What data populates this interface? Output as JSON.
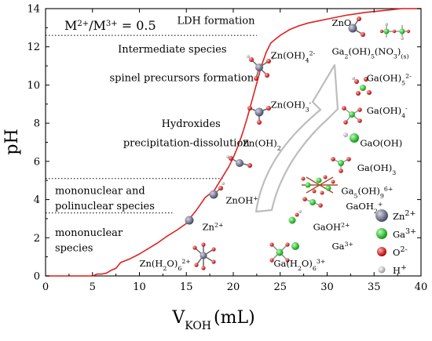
{
  "chart_data": {
    "type": "line",
    "xlabel": "V",
    "xlabel_sub": "KOH",
    "xlabel_unit": "(mL)",
    "ylabel": "pH",
    "xlim": [
      0,
      40
    ],
    "ylim": [
      0,
      14
    ],
    "x_ticks": [
      0,
      5,
      10,
      15,
      20,
      25,
      30,
      35,
      40
    ],
    "y_ticks": [
      0,
      2,
      4,
      6,
      8,
      10,
      12,
      14
    ],
    "grid": false,
    "ratio_label": {
      "base": "M",
      "sup1": "2+",
      "slash": "/M",
      "sup2": "3+",
      "value": " = 0.5"
    },
    "series": [
      {
        "color": "#e02020",
        "x": [
          0,
          5.0,
          5.5,
          6,
          6.5,
          7,
          7.5,
          8,
          9,
          10,
          11,
          12,
          13,
          14,
          15,
          15.5,
          16,
          16.5,
          17,
          18,
          18.5,
          19,
          19.5,
          20,
          20.5,
          21,
          21.5,
          22,
          22.5,
          23,
          23.5,
          24,
          25,
          26,
          27,
          28,
          29,
          30,
          31,
          32,
          33,
          34,
          35,
          36,
          37,
          38,
          40
        ],
        "y": [
          0,
          0.0,
          0.1,
          0.1,
          0.15,
          0.3,
          0.4,
          0.7,
          0.9,
          1.15,
          1.45,
          1.75,
          2.1,
          2.4,
          2.75,
          3.1,
          3.4,
          3.75,
          4.1,
          4.5,
          4.9,
          5.3,
          5.7,
          6.2,
          6.8,
          7.5,
          8.3,
          9.2,
          10.1,
          11.0,
          11.7,
          12.2,
          12.6,
          12.9,
          13.1,
          13.25,
          13.35,
          13.45,
          13.55,
          13.65,
          13.72,
          13.8,
          13.85,
          13.9,
          13.95,
          14.0,
          14.0
        ]
      }
    ],
    "reference_lines": [
      {
        "y": 12.6,
        "x_from": 0,
        "x_to": 22.5,
        "style": "dotted"
      },
      {
        "y": 5.1,
        "x_from": 0,
        "x_to": 19.0,
        "style": "dotted"
      },
      {
        "y": 3.3,
        "x_from": 0,
        "x_to": 13.5,
        "style": "dotted"
      }
    ],
    "annotations": [
      {
        "text": "LDH formation",
        "x": 22.3,
        "y": 13.2,
        "anchor": "end"
      },
      {
        "text": "Intermediate species",
        "x": 13.5,
        "y": 11.7,
        "anchor": "middle"
      },
      {
        "text": "spinel precursors formation",
        "x": 14.5,
        "y": 10.2,
        "anchor": "middle"
      },
      {
        "text": "Hydroxides",
        "x": 15.5,
        "y": 7.8,
        "anchor": "middle"
      },
      {
        "text": "precipitation-dissolution",
        "x": 15.0,
        "y": 6.8,
        "anchor": "middle"
      },
      {
        "text": "mononuclear and",
        "x": 1.0,
        "y": 4.3,
        "anchor": "start"
      },
      {
        "text": "polinuclear species",
        "x": 1.0,
        "y": 3.5,
        "anchor": "start"
      },
      {
        "text": "mononuclear",
        "x": 1.0,
        "y": 2.1,
        "anchor": "start"
      },
      {
        "text": "species",
        "x": 1.0,
        "y": 1.3,
        "anchor": "start"
      }
    ],
    "species_labels": [
      {
        "base": "ZnO",
        "x": 30.5,
        "y": 13.1
      },
      {
        "base": "Ga",
        "sub": "2",
        "rest": "(OH)",
        "sub2": "5",
        "rest2": "(NO",
        "sub3": "3",
        "rest3": ")",
        "sub4": "(s)",
        "x": 30.5,
        "y": 11.6
      },
      {
        "base": "Zn(OH)",
        "sub": "4",
        "sup": "2-",
        "x": 24.0,
        "y": 11.4
      },
      {
        "base": "Ga(OH)",
        "sub": "5",
        "sup": "2-",
        "x": 34.2,
        "y": 10.2
      },
      {
        "base": "Ga(OH)",
        "sub": "4",
        "sup": "-",
        "x": 34.2,
        "y": 8.5
      },
      {
        "base": "Zn(OH)",
        "sub": "3",
        "sup": "-",
        "x": 24.0,
        "y": 8.8
      },
      {
        "base": "GaO(OH)",
        "x": 33.5,
        "y": 6.8
      },
      {
        "base": "Zn(OH)",
        "sub": "2",
        "x": 21.0,
        "y": 6.8
      },
      {
        "base": "Ga(OH)",
        "sub": "3",
        "x": 33.2,
        "y": 5.5
      },
      {
        "base": "Ga",
        "sub": "5",
        "rest": "(OH)",
        "sub2": "9",
        "sup": "6+",
        "x": 31.5,
        "y": 4.3
      },
      {
        "base": "ZnOH",
        "sup": "+",
        "x": 19.2,
        "y": 3.8
      },
      {
        "base": "GaOH",
        "sub": "2",
        "sup": "+",
        "x": 32.0,
        "y": 3.5
      },
      {
        "base": "GaOH",
        "sup": "2+",
        "x": 28.5,
        "y": 2.4
      },
      {
        "base": "Zn",
        "sup": "2+",
        "x": 16.7,
        "y": 2.4
      },
      {
        "base": "Ga",
        "sup": "3+",
        "x": 30.5,
        "y": 1.4
      },
      {
        "base": "Zn(H",
        "sub": "2",
        "rest": "O)",
        "sub2": "6",
        "sup": "2+",
        "x": 10.0,
        "y": 0.5
      },
      {
        "base": "Ga(H",
        "sub": "2",
        "rest": "O)",
        "sub2": "6",
        "sup": "3+",
        "x": 24.3,
        "y": 0.5
      }
    ],
    "legend": {
      "placement": "bottom-right",
      "items": [
        {
          "label": "Zn",
          "sup": "2+",
          "color": "#6a6a80"
        },
        {
          "label": "Ga",
          "sup": "3+",
          "color": "#1fc81f"
        },
        {
          "label": "O",
          "sup": "2-",
          "color": "#e01515"
        },
        {
          "label": "H",
          "sup": "+",
          "color": "#c8c8c8"
        }
      ]
    },
    "colors": {
      "curve": "#e02020",
      "zn": "#6a6a80",
      "ga": "#1fc81f",
      "o": "#e01515",
      "h": "#c8c8c8",
      "arrow_fill": "#ffffff",
      "arrow_stroke": "#bdbdbd"
    }
  }
}
